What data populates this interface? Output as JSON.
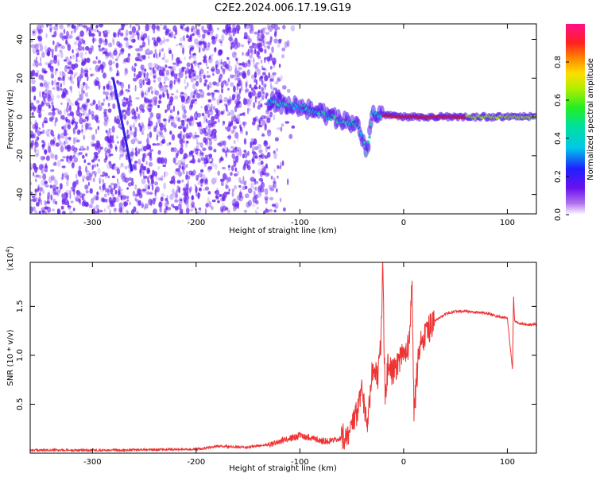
{
  "title": "C2E2.2024.006.17.19.G19",
  "colors": {
    "snr_line": "#ee3333",
    "spectrum_dots": "#6a22ee",
    "axis": "#000000"
  },
  "colorbar": {
    "label": "Normalized spectral amplitude",
    "ticks": [
      "0.0",
      "0.2",
      "0.4",
      "0.6",
      "0.8"
    ],
    "tick_values": [
      0.0,
      0.2,
      0.4,
      0.6,
      0.8
    ],
    "range": [
      0,
      1
    ],
    "colormap": "rainbow (purple → blue → cyan → green → yellow → red → pink)"
  },
  "chart_data": [
    {
      "type": "heatmap",
      "name": "spectrogram",
      "xlabel": "Height of straight line (km)",
      "ylabel": "Frequency (Hz)",
      "xlim": [
        -360,
        128
      ],
      "ylim": [
        -50,
        48
      ],
      "xticks": [
        -300,
        -200,
        -100,
        0,
        100
      ],
      "yticks": [
        -40,
        -20,
        0,
        20,
        40
      ],
      "xtick_labels": [
        "-300",
        "-200",
        "-100",
        "0",
        "100"
      ],
      "ytick_labels": [
        "-40",
        "-20",
        "0",
        "20",
        "40"
      ],
      "ridge": [
        {
          "x": -130,
          "y": 8
        },
        {
          "x": -100,
          "y": 5
        },
        {
          "x": -80,
          "y": 2
        },
        {
          "x": -60,
          "y": -2
        },
        {
          "x": -45,
          "y": -4
        },
        {
          "x": -35,
          "y": -18
        },
        {
          "x": -30,
          "y": 2
        },
        {
          "x": -20,
          "y": 1
        },
        {
          "x": 0,
          "y": 0
        },
        {
          "x": 50,
          "y": 0
        },
        {
          "x": 100,
          "y": 0
        },
        {
          "x": 128,
          "y": 0
        }
      ],
      "streak": {
        "x_start": -280,
        "y_start": 20,
        "x_end": -262,
        "y_end": -28
      },
      "noise_boundary_x": -135
    },
    {
      "type": "line",
      "name": "snr",
      "xlabel": "Height of straight line (km)",
      "ylabel": "SNR (10 * v/v)",
      "ylabel_multiplier": "(x10",
      "ylabel_multiplier_exp": "4",
      "ylabel_multiplier_close": ")",
      "xlim": [
        -360,
        128
      ],
      "ylim": [
        0,
        19500
      ],
      "xticks": [
        -300,
        -200,
        -100,
        0,
        100
      ],
      "yticks": [
        5000,
        10000,
        15000
      ],
      "xtick_labels": [
        "-300",
        "-200",
        "-100",
        "0",
        "100"
      ],
      "ytick_labels": [
        "0.5",
        "1.0",
        "1.5"
      ],
      "series": [
        {
          "x": [
            -360,
            -300,
            -250,
            -200,
            -180,
            -150,
            -130,
            -120,
            -110,
            -100,
            -90,
            -80,
            -70,
            -60,
            -50,
            -45,
            -40,
            -35,
            -30,
            -25,
            -22,
            -20,
            -18,
            -15,
            -10,
            -5,
            0,
            5,
            8,
            10,
            15,
            20,
            30,
            40,
            50,
            60,
            70,
            80,
            90,
            100,
            105,
            106,
            107,
            110,
            120,
            128
          ],
          "y": [
            300,
            300,
            350,
            400,
            700,
            600,
            900,
            1200,
            1500,
            1800,
            1600,
            1300,
            1200,
            1400,
            2500,
            4000,
            6500,
            3000,
            9000,
            7500,
            11000,
            19500,
            5500,
            9000,
            8000,
            9500,
            10500,
            11000,
            17000,
            4000,
            11000,
            12000,
            13500,
            14200,
            14500,
            14500,
            14400,
            14300,
            14000,
            13800,
            8500,
            16000,
            13500,
            13300,
            13100,
            13200
          ]
        }
      ]
    }
  ]
}
